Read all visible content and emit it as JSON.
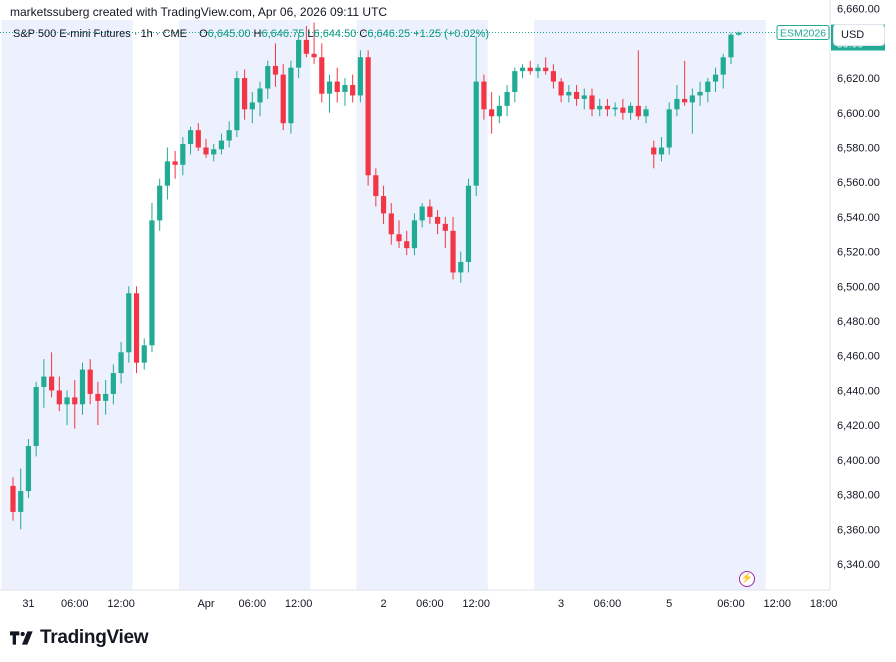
{
  "credit": "marketssuberg created with TradingView.com, Apr 06, 2026 09:11 UTC",
  "brand": "TradingView",
  "currency_button": "USD",
  "legend": {
    "symbol": "S&P 500 E-mini Futures · 1h · CME",
    "open_label": "O",
    "open": "6,645.00",
    "high_label": "H",
    "high": "6,646.75",
    "low_label": "L",
    "low": "6,644.50",
    "close_label": "C",
    "close": "6,646.25",
    "change": "+1.25 (+0.02%)"
  },
  "price_tag": {
    "symbol": "ESM2026",
    "price": "6,646.25",
    "countdown": "59:00"
  },
  "colors": {
    "up": "#22ab94",
    "down": "#f23645",
    "session_shade": "#ecf1fd",
    "last_price_line": "#22ab94"
  },
  "chart_data": {
    "type": "candlestick",
    "title": "S&P 500 E-mini Futures · 1h · CME",
    "interval": "1h",
    "ylim": [
      6325,
      6665
    ],
    "y_ticks": [
      6340,
      6360,
      6380,
      6400,
      6420,
      6440,
      6460,
      6480,
      6500,
      6520,
      6540,
      6560,
      6580,
      6600,
      6620,
      6640,
      6660
    ],
    "y_tick_labels": [
      "6,340.00",
      "6,360.00",
      "6,380.00",
      "6,400.00",
      "6,420.00",
      "6,440.00",
      "6,460.00",
      "6,480.00",
      "6,500.00",
      "6,520.00",
      "6,540.00",
      "6,560.00",
      "6,580.00",
      "6,600.00",
      "6,620.00",
      "6,640.00",
      "6,660.00"
    ],
    "x_tick_labels": [
      {
        "bar": 2,
        "label": "31"
      },
      {
        "bar": 8,
        "label": "06:00"
      },
      {
        "bar": 14,
        "label": "12:00"
      },
      {
        "bar": 25,
        "label": "Apr"
      },
      {
        "bar": 31,
        "label": "06:00"
      },
      {
        "bar": 37,
        "label": "12:00"
      },
      {
        "bar": 48,
        "label": "2"
      },
      {
        "bar": 54,
        "label": "06:00"
      },
      {
        "bar": 60,
        "label": "12:00"
      },
      {
        "bar": 71,
        "label": "3"
      },
      {
        "bar": 77,
        "label": "06:00"
      },
      {
        "bar": 85,
        "label": "5"
      },
      {
        "bar": 93,
        "label": "06:00"
      },
      {
        "bar": 99,
        "label": "12:00"
      },
      {
        "bar": 105,
        "label": "18:00"
      }
    ],
    "sessions": [
      [
        -1,
        15
      ],
      [
        22,
        38
      ],
      [
        45,
        61
      ],
      [
        68,
        97
      ]
    ],
    "last_price": 6646.25,
    "candles": [
      {
        "o": 6385,
        "h": 6390,
        "l": 6365,
        "c": 6370
      },
      {
        "o": 6370,
        "h": 6395,
        "l": 6360,
        "c": 6382
      },
      {
        "o": 6382,
        "h": 6412,
        "l": 6378,
        "c": 6408
      },
      {
        "o": 6408,
        "h": 6445,
        "l": 6402,
        "c": 6442
      },
      {
        "o": 6442,
        "h": 6458,
        "l": 6430,
        "c": 6448
      },
      {
        "o": 6448,
        "h": 6462,
        "l": 6436,
        "c": 6440
      },
      {
        "o": 6440,
        "h": 6448,
        "l": 6428,
        "c": 6432
      },
      {
        "o": 6432,
        "h": 6440,
        "l": 6420,
        "c": 6436
      },
      {
        "o": 6436,
        "h": 6446,
        "l": 6418,
        "c": 6432
      },
      {
        "o": 6432,
        "h": 6456,
        "l": 6426,
        "c": 6452
      },
      {
        "o": 6452,
        "h": 6458,
        "l": 6432,
        "c": 6438
      },
      {
        "o": 6438,
        "h": 6445,
        "l": 6420,
        "c": 6434
      },
      {
        "o": 6434,
        "h": 6446,
        "l": 6426,
        "c": 6438
      },
      {
        "o": 6438,
        "h": 6455,
        "l": 6432,
        "c": 6450
      },
      {
        "o": 6450,
        "h": 6468,
        "l": 6444,
        "c": 6462
      },
      {
        "o": 6462,
        "h": 6500,
        "l": 6456,
        "c": 6496
      },
      {
        "o": 6496,
        "h": 6500,
        "l": 6450,
        "c": 6456
      },
      {
        "o": 6456,
        "h": 6470,
        "l": 6452,
        "c": 6466
      },
      {
        "o": 6466,
        "h": 6548,
        "l": 6462,
        "c": 6538
      },
      {
        "o": 6538,
        "h": 6562,
        "l": 6532,
        "c": 6558
      },
      {
        "o": 6558,
        "h": 6580,
        "l": 6550,
        "c": 6572
      },
      {
        "o": 6572,
        "h": 6578,
        "l": 6562,
        "c": 6570
      },
      {
        "o": 6570,
        "h": 6586,
        "l": 6564,
        "c": 6582
      },
      {
        "o": 6582,
        "h": 6592,
        "l": 6576,
        "c": 6590
      },
      {
        "o": 6590,
        "h": 6594,
        "l": 6578,
        "c": 6580
      },
      {
        "o": 6580,
        "h": 6585,
        "l": 6574,
        "c": 6576
      },
      {
        "o": 6576,
        "h": 6582,
        "l": 6572,
        "c": 6579
      },
      {
        "o": 6579,
        "h": 6588,
        "l": 6576,
        "c": 6584
      },
      {
        "o": 6584,
        "h": 6595,
        "l": 6580,
        "c": 6590
      },
      {
        "o": 6590,
        "h": 6624,
        "l": 6586,
        "c": 6620
      },
      {
        "o": 6620,
        "h": 6625,
        "l": 6596,
        "c": 6602
      },
      {
        "o": 6602,
        "h": 6612,
        "l": 6594,
        "c": 6606
      },
      {
        "o": 6606,
        "h": 6618,
        "l": 6598,
        "c": 6614
      },
      {
        "o": 6614,
        "h": 6630,
        "l": 6608,
        "c": 6627
      },
      {
        "o": 6627,
        "h": 6640,
        "l": 6615,
        "c": 6622
      },
      {
        "o": 6622,
        "h": 6628,
        "l": 6590,
        "c": 6594
      },
      {
        "o": 6594,
        "h": 6630,
        "l": 6588,
        "c": 6626
      },
      {
        "o": 6626,
        "h": 6646,
        "l": 6620,
        "c": 6642
      },
      {
        "o": 6642,
        "h": 6650,
        "l": 6632,
        "c": 6634
      },
      {
        "o": 6634,
        "h": 6652,
        "l": 6628,
        "c": 6632
      },
      {
        "o": 6632,
        "h": 6640,
        "l": 6606,
        "c": 6611
      },
      {
        "o": 6611,
        "h": 6622,
        "l": 6600,
        "c": 6618
      },
      {
        "o": 6618,
        "h": 6626,
        "l": 6606,
        "c": 6612
      },
      {
        "o": 6612,
        "h": 6620,
        "l": 6604,
        "c": 6616
      },
      {
        "o": 6616,
        "h": 6622,
        "l": 6606,
        "c": 6610
      },
      {
        "o": 6610,
        "h": 6636,
        "l": 6606,
        "c": 6632
      },
      {
        "o": 6632,
        "h": 6636,
        "l": 6558,
        "c": 6564
      },
      {
        "o": 6564,
        "h": 6568,
        "l": 6546,
        "c": 6552
      },
      {
        "o": 6552,
        "h": 6558,
        "l": 6536,
        "c": 6542
      },
      {
        "o": 6542,
        "h": 6548,
        "l": 6524,
        "c": 6530
      },
      {
        "o": 6530,
        "h": 6538,
        "l": 6522,
        "c": 6526
      },
      {
        "o": 6526,
        "h": 6532,
        "l": 6518,
        "c": 6522
      },
      {
        "o": 6522,
        "h": 6542,
        "l": 6518,
        "c": 6538
      },
      {
        "o": 6538,
        "h": 6548,
        "l": 6534,
        "c": 6546
      },
      {
        "o": 6546,
        "h": 6550,
        "l": 6536,
        "c": 6540
      },
      {
        "o": 6540,
        "h": 6544,
        "l": 6530,
        "c": 6536
      },
      {
        "o": 6536,
        "h": 6540,
        "l": 6522,
        "c": 6532
      },
      {
        "o": 6532,
        "h": 6540,
        "l": 6504,
        "c": 6508
      },
      {
        "o": 6508,
        "h": 6520,
        "l": 6502,
        "c": 6514
      },
      {
        "o": 6514,
        "h": 6562,
        "l": 6508,
        "c": 6558
      },
      {
        "o": 6558,
        "h": 6644,
        "l": 6552,
        "c": 6618
      },
      {
        "o": 6618,
        "h": 6622,
        "l": 6596,
        "c": 6602
      },
      {
        "o": 6602,
        "h": 6612,
        "l": 6588,
        "c": 6598
      },
      {
        "o": 6598,
        "h": 6610,
        "l": 6594,
        "c": 6604
      },
      {
        "o": 6604,
        "h": 6616,
        "l": 6598,
        "c": 6612
      },
      {
        "o": 6612,
        "h": 6626,
        "l": 6606,
        "c": 6624
      },
      {
        "o": 6624,
        "h": 6628,
        "l": 6620,
        "c": 6626
      },
      {
        "o": 6626,
        "h": 6630,
        "l": 6622,
        "c": 6624
      },
      {
        "o": 6624,
        "h": 6628,
        "l": 6620,
        "c": 6626
      },
      {
        "o": 6626,
        "h": 6632,
        "l": 6622,
        "c": 6624
      },
      {
        "o": 6624,
        "h": 6628,
        "l": 6614,
        "c": 6618
      },
      {
        "o": 6618,
        "h": 6620,
        "l": 6606,
        "c": 6610
      },
      {
        "o": 6610,
        "h": 6616,
        "l": 6606,
        "c": 6612
      },
      {
        "o": 6612,
        "h": 6616,
        "l": 6604,
        "c": 6608
      },
      {
        "o": 6608,
        "h": 6614,
        "l": 6602,
        "c": 6610
      },
      {
        "o": 6610,
        "h": 6614,
        "l": 6598,
        "c": 6602
      },
      {
        "o": 6602,
        "h": 6608,
        "l": 6598,
        "c": 6604
      },
      {
        "o": 6604,
        "h": 6608,
        "l": 6598,
        "c": 6602
      },
      {
        "o": 6602,
        "h": 6606,
        "l": 6598,
        "c": 6603
      },
      {
        "o": 6603,
        "h": 6608,
        "l": 6596,
        "c": 6600
      },
      {
        "o": 6600,
        "h": 6606,
        "l": 6596,
        "c": 6604
      },
      {
        "o": 6604,
        "h": 6636,
        "l": 6596,
        "c": 6598
      },
      {
        "o": 6598,
        "h": 6604,
        "l": 6594,
        "c": 6602
      },
      {
        "o": 6580,
        "h": 6584,
        "l": 6568,
        "c": 6576
      },
      {
        "o": 6576,
        "h": 6586,
        "l": 6572,
        "c": 6580
      },
      {
        "o": 6580,
        "h": 6606,
        "l": 6576,
        "c": 6602
      },
      {
        "o": 6602,
        "h": 6616,
        "l": 6598,
        "c": 6608
      },
      {
        "o": 6608,
        "h": 6630,
        "l": 6604,
        "c": 6606
      },
      {
        "o": 6606,
        "h": 6614,
        "l": 6588,
        "c": 6610
      },
      {
        "o": 6610,
        "h": 6618,
        "l": 6604,
        "c": 6612
      },
      {
        "o": 6612,
        "h": 6620,
        "l": 6606,
        "c": 6618
      },
      {
        "o": 6618,
        "h": 6626,
        "l": 6612,
        "c": 6622
      },
      {
        "o": 6622,
        "h": 6634,
        "l": 6614,
        "c": 6632
      },
      {
        "o": 6632,
        "h": 6646,
        "l": 6628,
        "c": 6645
      },
      {
        "o": 6645,
        "h": 6646.75,
        "l": 6644.5,
        "c": 6646.25
      }
    ]
  }
}
